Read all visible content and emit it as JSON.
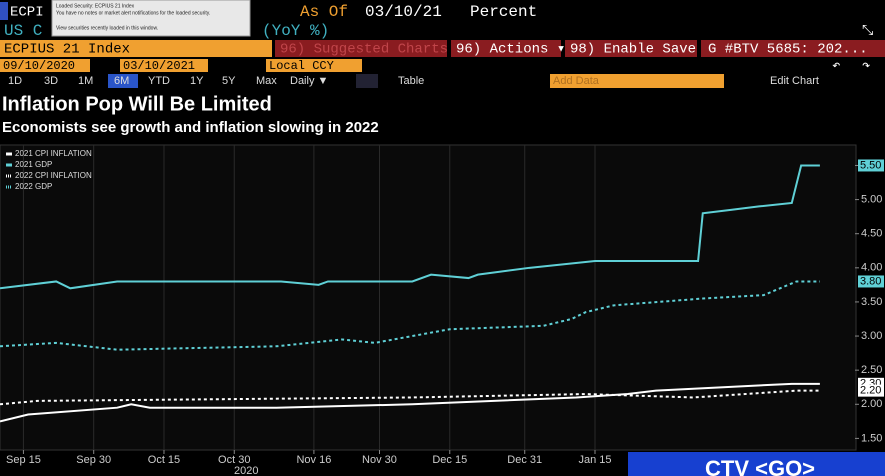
{
  "header": {
    "security": "ECPI",
    "as_of": "As Of",
    "date": "03/10/21",
    "units": "Percent",
    "subtitle_start": "US C",
    "subtitle_end": "(YoY %)"
  },
  "tooltip": {
    "line1": "Loaded Security: ECPIUS 21 Index",
    "line2": "You have no notes or market alert notifications for the loaded security.",
    "line3": "View securities recently loaded in this window."
  },
  "toolbar": {
    "ticker": "ECPIUS 21 Index",
    "suggested": "96) Suggested Charts",
    "actions": "96) Actions ▾",
    "enable_save": "98) Enable Save",
    "story": "G #BTV 5685: 202..."
  },
  "range": {
    "start": "09/10/2020",
    "end": "03/10/2021",
    "currency": "Local CCY"
  },
  "periods": [
    "1D",
    "3D",
    "1M",
    "6M",
    "YTD",
    "1Y",
    "5Y",
    "Max"
  ],
  "frequency": "Daily ▼",
  "table": "Table",
  "add_data": "Add Data",
  "edit_chart": "Edit Chart",
  "chart_data": {
    "type": "line",
    "title": "Inflation Pop Will Be Limited",
    "subtitle": "Economists see growth and inflation slowing in 2022",
    "legend": "upper left",
    "grid": "x",
    "xlim": [
      0,
      181
    ],
    "xticks": [
      {
        "value": 5,
        "label": "Sep 15"
      },
      {
        "value": 20,
        "label": "Sep 30"
      },
      {
        "value": 35,
        "label": "Oct 15"
      },
      {
        "value": 50,
        "label": "Oct 30"
      },
      {
        "value": 67,
        "label": "Nov 16"
      },
      {
        "value": 81,
        "label": "Nov 30"
      },
      {
        "value": 96,
        "label": "Dec 15"
      },
      {
        "value": 112,
        "label": "Dec 31"
      },
      {
        "value": 127,
        "label": "Jan 15"
      }
    ],
    "x_year_label": "2020",
    "ylim": [
      1.33,
      5.8
    ],
    "yticks": [
      {
        "value": 1.5,
        "label": "1.50"
      },
      {
        "value": 2,
        "label": "2.00"
      },
      {
        "value": 2.5,
        "label": "2.50"
      },
      {
        "value": 3,
        "label": "3.00"
      },
      {
        "value": 3.5,
        "label": "3.50"
      },
      {
        "value": 4,
        "label": "4.00"
      },
      {
        "value": 4.5,
        "label": "4.50"
      },
      {
        "value": 5,
        "label": "5.00"
      },
      {
        "value": 5.5,
        "label": "5.50"
      }
    ],
    "series": [
      {
        "name": "2021 CPI INFLATION",
        "color": "#ffffff",
        "style": "solid",
        "x": [
          0,
          6,
          25,
          28,
          32,
          59,
          88,
          123,
          134,
          140,
          169,
          175
        ],
        "values": [
          1.75,
          1.85,
          1.95,
          2.0,
          1.95,
          1.95,
          2.0,
          2.1,
          2.15,
          2.2,
          2.3,
          2.3
        ],
        "value_labels": [
          null,
          null,
          null,
          null,
          null,
          null,
          null,
          null,
          null,
          null,
          null,
          "2.30"
        ]
      },
      {
        "name": "2021 GDP",
        "color": "#5fd0d6",
        "style": "solid",
        "x": [
          0,
          12,
          15,
          25,
          60,
          68,
          70,
          88,
          92,
          100,
          102,
          113,
          127,
          149,
          150,
          156,
          162,
          169,
          171,
          175
        ],
        "values": [
          3.7,
          3.8,
          3.7,
          3.8,
          3.8,
          3.75,
          3.8,
          3.8,
          3.9,
          3.85,
          3.9,
          4.0,
          4.1,
          4.1,
          4.8,
          4.85,
          4.9,
          4.95,
          5.5,
          5.5
        ],
        "value_labels": [
          null,
          null,
          null,
          null,
          null,
          null,
          null,
          null,
          null,
          null,
          null,
          null,
          null,
          null,
          null,
          null,
          null,
          null,
          null,
          "5.50"
        ]
      },
      {
        "name": "2022 CPI INFLATION",
        "color": "#ffffff",
        "style": "dotted",
        "x": [
          0,
          8,
          88,
          125,
          148,
          170,
          175
        ],
        "values": [
          2.0,
          2.05,
          2.1,
          2.15,
          2.1,
          2.2,
          2.2
        ],
        "value_labels": [
          null,
          null,
          null,
          null,
          null,
          null,
          "2.20"
        ]
      },
      {
        "name": "2022 GDP",
        "color": "#5fd0d6",
        "style": "dotted",
        "x": [
          0,
          12,
          25,
          59,
          73,
          80,
          88,
          96,
          116,
          122,
          125,
          131,
          150,
          163,
          170,
          175
        ],
        "values": [
          2.85,
          2.9,
          2.8,
          2.85,
          2.95,
          2.9,
          3.0,
          3.1,
          3.15,
          3.25,
          3.35,
          3.45,
          3.55,
          3.6,
          3.8,
          3.8
        ],
        "value_labels": [
          null,
          null,
          null,
          null,
          null,
          null,
          null,
          null,
          null,
          null,
          null,
          null,
          null,
          null,
          null,
          "3.80"
        ]
      }
    ]
  },
  "footer": {
    "ctv": "CTV <GO>"
  }
}
